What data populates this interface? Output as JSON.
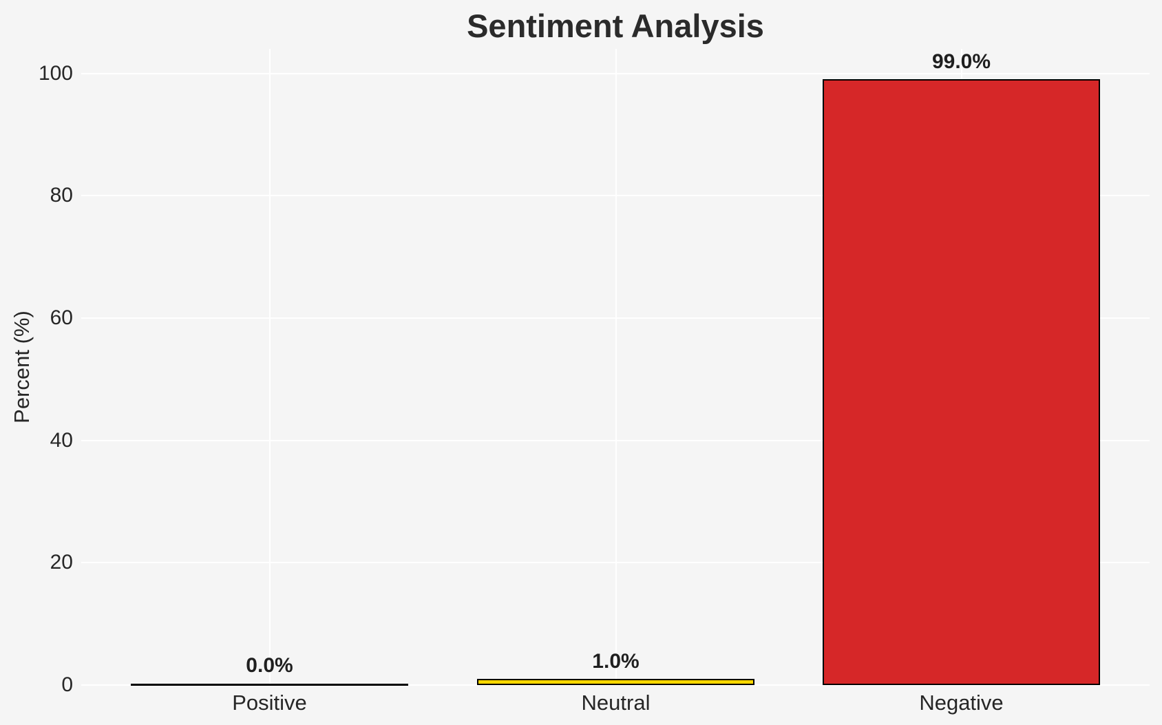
{
  "chart_data": {
    "type": "bar",
    "title": "Sentiment Analysis",
    "ylabel": "Percent (%)",
    "xlabel": "",
    "categories": [
      "Positive",
      "Neutral",
      "Negative"
    ],
    "values": [
      0.0,
      1.0,
      99.0
    ],
    "value_labels": [
      "0.0%",
      "1.0%",
      "99.0%"
    ],
    "bar_colors": [
      "none",
      "#FFD700",
      "#D62728"
    ],
    "bar_edge_color": "#000000",
    "ytick_labels": [
      "0",
      "20",
      "40",
      "60",
      "80",
      "100"
    ],
    "ytick_values": [
      0,
      20,
      40,
      60,
      80,
      100
    ],
    "ylim": [
      0,
      104
    ],
    "grid": true,
    "gridline_color": "#FFFFFF",
    "background_color": "#F5F5F5",
    "text_color": "#262626",
    "legend": "none"
  }
}
